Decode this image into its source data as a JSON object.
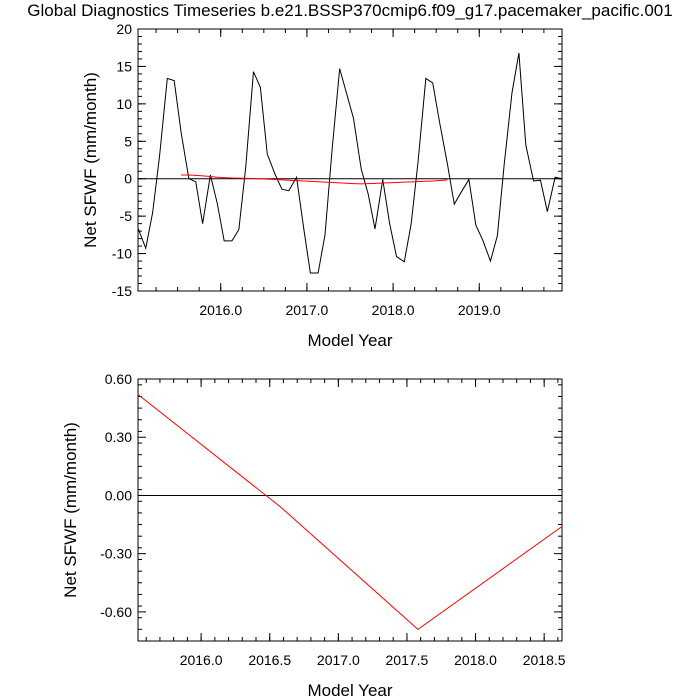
{
  "title": "Global Diagnostics Timeseries b.e21.BSSP370cmip6.f09_g17.pacemaker_pacific.001",
  "chart_data": [
    {
      "type": "line",
      "xlabel": "Model Year",
      "ylabel": "Net SFWF (mm/month)",
      "xlim": [
        2015.04,
        2019.96
      ],
      "ylim": [
        -15,
        20
      ],
      "x_ticks": [
        2016.0,
        2017.0,
        2018.0,
        2019.0
      ],
      "x_tick_labels": [
        "2016.0",
        "2017.0",
        "2018.0",
        "2019.0"
      ],
      "y_ticks": [
        -15,
        -10,
        -5,
        0,
        5,
        10,
        15,
        20
      ],
      "y_tick_labels": [
        "-15",
        "-10",
        "-5",
        "0",
        "5",
        "10",
        "15",
        "20"
      ],
      "reference_line": 0,
      "series": [
        {
          "color": "#000000",
          "x": [
            2015.04,
            2015.13,
            2015.21,
            2015.29,
            2015.38,
            2015.46,
            2015.54,
            2015.63,
            2015.71,
            2015.79,
            2015.88,
            2015.96,
            2016.04,
            2016.13,
            2016.21,
            2016.29,
            2016.38,
            2016.46,
            2016.54,
            2016.63,
            2016.71,
            2016.79,
            2016.88,
            2016.96,
            2017.04,
            2017.13,
            2017.21,
            2017.29,
            2017.38,
            2017.46,
            2017.54,
            2017.63,
            2017.71,
            2017.79,
            2017.88,
            2017.96,
            2018.04,
            2018.13,
            2018.21,
            2018.29,
            2018.38,
            2018.46,
            2018.54,
            2018.63,
            2018.71,
            2018.79,
            2018.88,
            2018.96,
            2019.04,
            2019.13,
            2019.21,
            2019.29,
            2019.38,
            2019.46,
            2019.54,
            2019.63,
            2019.71,
            2019.79,
            2019.88,
            2019.96
          ],
          "values": [
            -6.6,
            -9.3,
            -4.5,
            3.0,
            13.4,
            13.1,
            6.2,
            0.0,
            -0.4,
            -6.0,
            0.5,
            -3.3,
            -8.3,
            -8.3,
            -6.8,
            1.5,
            14.3,
            12.2,
            3.3,
            0.6,
            -1.4,
            -1.6,
            0.2,
            -6.4,
            -12.6,
            -12.6,
            -7.5,
            3.6,
            14.7,
            11.4,
            8.1,
            1.3,
            -2.0,
            -6.7,
            -0.1,
            -6.0,
            -10.4,
            -11.1,
            -6.0,
            2.3,
            13.4,
            12.8,
            7.5,
            2.0,
            -3.4,
            -1.8,
            -0.1,
            -6.2,
            -8.2,
            -11.0,
            -7.6,
            2.0,
            11.5,
            16.8,
            4.5,
            -0.3,
            -0.2,
            -4.4,
            0.2,
            0.0
          ]
        },
        {
          "color": "#ff0000",
          "x": [
            2015.54,
            2015.63,
            2015.71,
            2015.79,
            2015.88,
            2015.96,
            2016.04,
            2016.13,
            2016.21,
            2016.29,
            2016.38,
            2016.46,
            2016.54,
            2016.63,
            2016.71,
            2016.79,
            2016.88,
            2016.96,
            2017.04,
            2017.13,
            2017.21,
            2017.29,
            2017.38,
            2017.46,
            2017.54,
            2017.63,
            2017.71,
            2017.79,
            2017.88,
            2017.96,
            2018.04,
            2018.13,
            2018.21,
            2018.29,
            2018.38,
            2018.46,
            2018.54,
            2018.63
          ],
          "values": [
            0.5,
            0.5,
            0.45,
            0.38,
            0.3,
            0.2,
            0.15,
            0.1,
            0.08,
            0.05,
            0.02,
            0.0,
            -0.05,
            -0.1,
            -0.15,
            -0.2,
            -0.25,
            -0.3,
            -0.35,
            -0.4,
            -0.45,
            -0.5,
            -0.55,
            -0.6,
            -0.65,
            -0.69,
            -0.66,
            -0.62,
            -0.58,
            -0.54,
            -0.5,
            -0.46,
            -0.42,
            -0.38,
            -0.34,
            -0.3,
            -0.23,
            -0.16
          ]
        }
      ]
    },
    {
      "type": "line",
      "xlabel": "Model Year",
      "ylabel": "Net SFWF (mm/month)",
      "xlim": [
        2015.54,
        2018.63
      ],
      "ylim": [
        -0.75,
        0.6
      ],
      "x_ticks": [
        2016.0,
        2016.5,
        2017.0,
        2017.5,
        2018.0,
        2018.5
      ],
      "x_tick_labels": [
        "2016.0",
        "2016.5",
        "2017.0",
        "2017.5",
        "2018.0",
        "2018.5"
      ],
      "y_ticks": [
        -0.6,
        -0.3,
        0.0,
        0.3,
        0.6
      ],
      "y_tick_labels": [
        "-0.60",
        "-0.30",
        "0.00",
        "0.30",
        "0.60"
      ],
      "reference_line": 0,
      "series": [
        {
          "color": "#ff0000",
          "x": [
            2015.54,
            2016.58,
            2017.58,
            2018.63
          ],
          "values": [
            0.52,
            -0.06,
            -0.69,
            -0.16
          ]
        }
      ]
    }
  ]
}
